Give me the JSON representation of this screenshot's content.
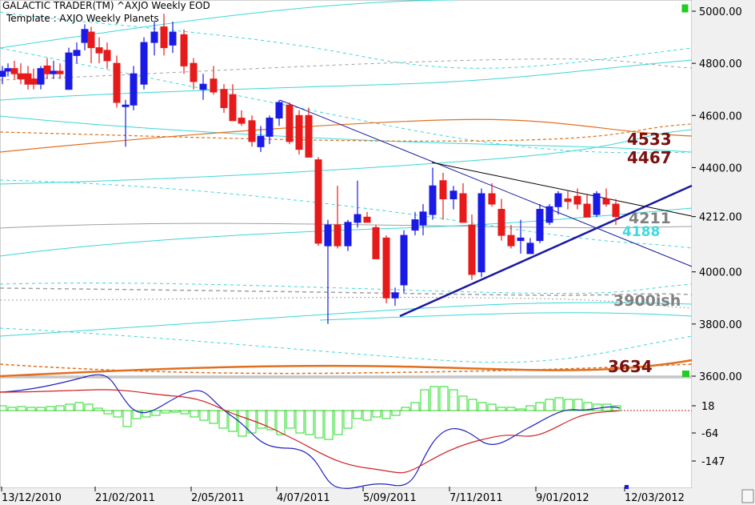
{
  "header": {
    "app_title": "GALACTIC TRADER(TM)",
    "symbol_title": "^AXJO Weekly EOD",
    "template_label": "Template : AXJO Weekly Planets"
  },
  "chart_data": [
    {
      "type": "candlestick",
      "title": "^AXJO Weekly EOD",
      "y_ticks": [
        "5000.00",
        "4800.00",
        "4600.00",
        "4400.00",
        "4212.00",
        "4000.00",
        "3800.00",
        "3600.00"
      ],
      "ylim": [
        3600,
        5000
      ],
      "last_price": "4212.00",
      "x_tick_labels": [
        "13/12/2010",
        "21/02/2011",
        "2/05/2011",
        "4/07/2011",
        "5/09/2011",
        "7/11/2011",
        "9/01/2012",
        "12/03/2012"
      ],
      "annotations": [
        {
          "text": "4533",
          "color": "#7a1010"
        },
        {
          "text": "4467",
          "color": "#7a1010"
        },
        {
          "text": "4211",
          "color": "#808080"
        },
        {
          "text": "4188",
          "color": "#40d8e0"
        },
        {
          "text": "3900ish",
          "color": "#808080"
        },
        {
          "text": "3634",
          "color": "#7a1010"
        }
      ],
      "colors": {
        "up_candle": "#1a1ae6",
        "down_candle": "#e61a1a",
        "planet_lines_cyan": "#3cd6d6",
        "planet_lines_orange": "#e07020",
        "planet_lines_grey": "#a0a0a0",
        "trendlines": "#1a1aa0"
      }
    },
    {
      "type": "macd",
      "y_ticks": [
        "18",
        "-64",
        "-147"
      ],
      "colors": {
        "histogram": "#22dd22",
        "macd_line": "#2020c0",
        "signal_line": "#d02020",
        "zero_line": "#d02020"
      }
    }
  ]
}
